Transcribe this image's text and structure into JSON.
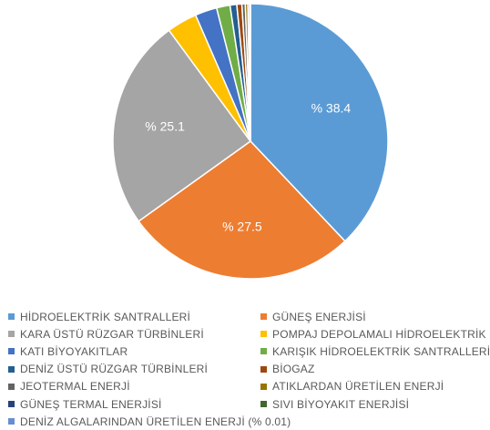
{
  "chart_data": {
    "type": "pie",
    "title": "",
    "slices": [
      {
        "label": "HİDROELEKTRİK SANTRALLERİ",
        "value": 38.4,
        "data_label": "% 38.4",
        "color": "#5b9bd5"
      },
      {
        "label": "GÜNEŞ ENERJİSİ",
        "value": 27.5,
        "data_label": "% 27.5",
        "color": "#ed7d31"
      },
      {
        "label": "KARA ÜSTÜ RÜZGAR TÜRBİNLERİ",
        "value": 25.1,
        "data_label": "% 25.1",
        "color": "#a5a5a5"
      },
      {
        "label": "POMPAJ DEPOLAMALI HİDROELEKTRİK",
        "value": 3.6,
        "data_label": "",
        "color": "#ffc000"
      },
      {
        "label": "KATI BİYOYAKITLAR",
        "value": 2.6,
        "data_label": "",
        "color": "#4472c4"
      },
      {
        "label": "KARIŞIK HİDROELEKTRİK SANTRALLERİ",
        "value": 1.6,
        "data_label": "",
        "color": "#70ad47"
      },
      {
        "label": "DENİZ ÜSTÜ RÜZGAR TÜRBİNLERİ",
        "value": 0.8,
        "data_label": "",
        "color": "#255e91"
      },
      {
        "label": "BİOGAZ",
        "value": 0.6,
        "data_label": "",
        "color": "#9e480e"
      },
      {
        "label": "JEOTERMAL ENERJİ",
        "value": 0.4,
        "data_label": "",
        "color": "#636363"
      },
      {
        "label": "ATIKLARDAN ÜRETİLEN ENERJİ",
        "value": 0.3,
        "data_label": "",
        "color": "#997300"
      },
      {
        "label": "GÜNEŞ TERMAL ENERJİSİ",
        "value": 0.2,
        "data_label": "",
        "color": "#264478"
      },
      {
        "label": "SIVI BİYOYAKIT ENERJİSİ",
        "value": 0.1,
        "data_label": "",
        "color": "#43682b"
      },
      {
        "label": "DENİZ ALGALARINDAN ÜRETİLEN ENERJİ (% 0.01)",
        "value": 0.01,
        "data_label": "",
        "color": "#698ed0"
      }
    ],
    "legend": {
      "position": "bottom",
      "columns": 2
    }
  }
}
